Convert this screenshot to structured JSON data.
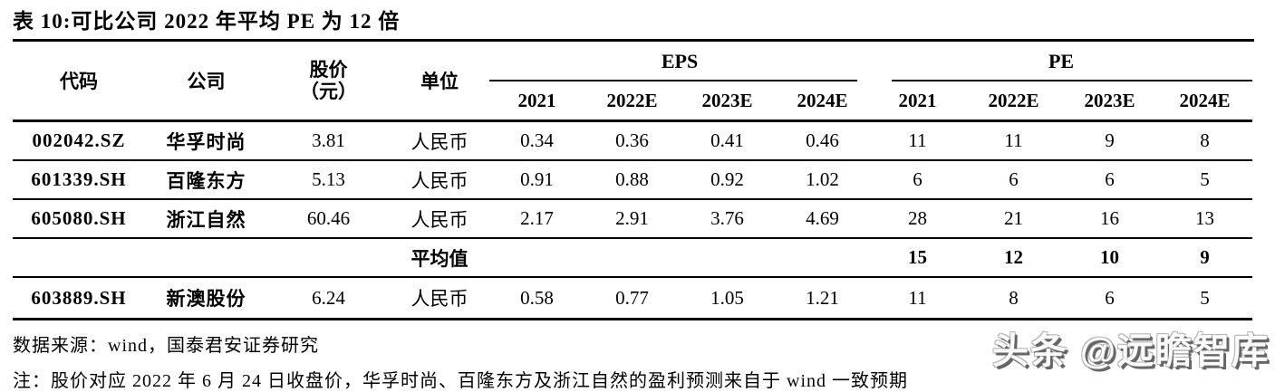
{
  "title": "表 10:可比公司 2022 年平均 PE 为 12 倍",
  "table": {
    "headers": {
      "code": "代码",
      "company": "公司",
      "price_line1": "股价",
      "price_line2": "（元）",
      "unit": "单位",
      "eps_group": "EPS",
      "pe_group": "PE",
      "eps_years": [
        "2021",
        "2022E",
        "2023E",
        "2024E"
      ],
      "pe_years": [
        "2021",
        "2022E",
        "2023E",
        "2024E"
      ]
    },
    "rows": [
      {
        "code": "002042.SZ",
        "company": "华孚时尚",
        "price": "3.81",
        "unit": "人民币",
        "eps": [
          "0.34",
          "0.36",
          "0.41",
          "0.46"
        ],
        "pe": [
          "11",
          "11",
          "9",
          "8"
        ],
        "is_average": false
      },
      {
        "code": "601339.SH",
        "company": "百隆东方",
        "price": "5.13",
        "unit": "人民币",
        "eps": [
          "0.91",
          "0.88",
          "0.92",
          "1.02"
        ],
        "pe": [
          "6",
          "6",
          "6",
          "5"
        ],
        "is_average": false
      },
      {
        "code": "605080.SH",
        "company": "浙江自然",
        "price": "60.46",
        "unit": "人民币",
        "eps": [
          "2.17",
          "2.91",
          "3.76",
          "4.69"
        ],
        "pe": [
          "28",
          "21",
          "16",
          "13"
        ],
        "is_average": false
      },
      {
        "code": "",
        "company": "",
        "price": "",
        "unit": "平均值",
        "eps": [
          "",
          "",
          "",
          ""
        ],
        "pe": [
          "15",
          "12",
          "10",
          "9"
        ],
        "is_average": true
      },
      {
        "code": "603889.SH",
        "company": "新澳股份",
        "price": "6.24",
        "unit": "人民币",
        "eps": [
          "0.58",
          "0.77",
          "1.05",
          "1.21"
        ],
        "pe": [
          "11",
          "8",
          "6",
          "5"
        ],
        "is_average": false
      }
    ]
  },
  "source": "数据来源：wind，国泰君安证券研究",
  "note": "注：股价对应 2022 年 6 月 24 日收盘价，华孚时尚、百隆东方及浙江自然的盈利预测来自于 wind 一致预期",
  "watermark": "头条 @远瞻智库"
}
